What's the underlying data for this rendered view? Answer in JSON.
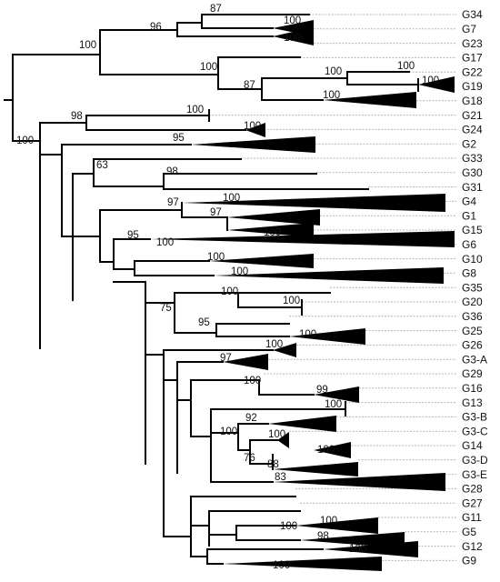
{
  "tips": [
    {
      "id": "G34",
      "label": "G34"
    },
    {
      "id": "G7",
      "label": "G7"
    },
    {
      "id": "G23",
      "label": "G23"
    },
    {
      "id": "G17",
      "label": "G17"
    },
    {
      "id": "G22",
      "label": "G22"
    },
    {
      "id": "G19",
      "label": "G19"
    },
    {
      "id": "G18",
      "label": "G18"
    },
    {
      "id": "G21",
      "label": "G21"
    },
    {
      "id": "G24",
      "label": "G24"
    },
    {
      "id": "G2",
      "label": "G2"
    },
    {
      "id": "G33",
      "label": "G33"
    },
    {
      "id": "G30",
      "label": "G30"
    },
    {
      "id": "G31",
      "label": "G31"
    },
    {
      "id": "G4",
      "label": "G4"
    },
    {
      "id": "G1",
      "label": "G1"
    },
    {
      "id": "G15",
      "label": "G15"
    },
    {
      "id": "G6",
      "label": "G6"
    },
    {
      "id": "G10",
      "label": "G10"
    },
    {
      "id": "G8",
      "label": "G8"
    },
    {
      "id": "G35",
      "label": "G35"
    },
    {
      "id": "G20",
      "label": "G20"
    },
    {
      "id": "G36",
      "label": "G36"
    },
    {
      "id": "G25",
      "label": "G25"
    },
    {
      "id": "G26",
      "label": "G26"
    },
    {
      "id": "G3-A",
      "label": "G3-A"
    },
    {
      "id": "G29",
      "label": "G29"
    },
    {
      "id": "G16",
      "label": "G16"
    },
    {
      "id": "G13",
      "label": "G13"
    },
    {
      "id": "G3-B",
      "label": "G3-B"
    },
    {
      "id": "G3-C",
      "label": "G3-C"
    },
    {
      "id": "G14",
      "label": "G14"
    },
    {
      "id": "G3-D",
      "label": "G3-D"
    },
    {
      "id": "G3-E",
      "label": "G3-E"
    },
    {
      "id": "G28",
      "label": "G28"
    },
    {
      "id": "G27",
      "label": "G27"
    },
    {
      "id": "G11",
      "label": "G11"
    },
    {
      "id": "G5",
      "label": "G5"
    },
    {
      "id": "G12",
      "label": "G12"
    },
    {
      "id": "G9",
      "label": "G9"
    }
  ],
  "support_values": [
    {
      "id": "s-g34",
      "value": "87"
    },
    {
      "id": "s-g34-g7",
      "value": "96"
    },
    {
      "id": "s-g7",
      "value": "100"
    },
    {
      "id": "s-g23",
      "value": "100"
    },
    {
      "id": "s-top",
      "value": "100"
    },
    {
      "id": "s-g17",
      "value": "100"
    },
    {
      "id": "s-g22-g19",
      "value": "87"
    },
    {
      "id": "s-g22",
      "value": "100"
    },
    {
      "id": "s-g19",
      "value": "100"
    },
    {
      "id": "s-g19b",
      "value": "100"
    },
    {
      "id": "s-g18",
      "value": "100"
    },
    {
      "id": "s-g21-g24",
      "value": "98"
    },
    {
      "id": "s-g21",
      "value": "100"
    },
    {
      "id": "s-g24",
      "value": "100"
    },
    {
      "id": "s-main",
      "value": "100"
    },
    {
      "id": "s-g2",
      "value": "95"
    },
    {
      "id": "s-g33",
      "value": "63"
    },
    {
      "id": "s-g30",
      "value": "98"
    },
    {
      "id": "s-g4-g1",
      "value": "97"
    },
    {
      "id": "s-g4",
      "value": "100"
    },
    {
      "id": "s-g1",
      "value": "97"
    },
    {
      "id": "s-g15",
      "value": "100"
    },
    {
      "id": "s-g6-grp",
      "value": "95"
    },
    {
      "id": "s-g6",
      "value": "100"
    },
    {
      "id": "s-g10",
      "value": "100"
    },
    {
      "id": "s-g8",
      "value": "100"
    },
    {
      "id": "s-g35",
      "value": "100"
    },
    {
      "id": "s-g20",
      "value": "100"
    },
    {
      "id": "s-75",
      "value": "75"
    },
    {
      "id": "s-g36",
      "value": "95"
    },
    {
      "id": "s-g25",
      "value": "100"
    },
    {
      "id": "s-g26",
      "value": "100"
    },
    {
      "id": "s-g3a",
      "value": "97"
    },
    {
      "id": "s-g29",
      "value": "100"
    },
    {
      "id": "s-g16",
      "value": "99"
    },
    {
      "id": "s-g13",
      "value": "100"
    },
    {
      "id": "s-g3b",
      "value": "92"
    },
    {
      "id": "s-g3b-grp",
      "value": "100"
    },
    {
      "id": "s-g3c",
      "value": "100"
    },
    {
      "id": "s-g14-grp",
      "value": "76"
    },
    {
      "id": "s-g14",
      "value": "100"
    },
    {
      "id": "s-g3d",
      "value": "88"
    },
    {
      "id": "s-g3e",
      "value": "83"
    },
    {
      "id": "s-g11-grp",
      "value": "100"
    },
    {
      "id": "s-g11",
      "value": "100"
    },
    {
      "id": "s-g5",
      "value": "98"
    },
    {
      "id": "s-g12",
      "value": "100"
    },
    {
      "id": "s-g9",
      "value": "100"
    }
  ]
}
